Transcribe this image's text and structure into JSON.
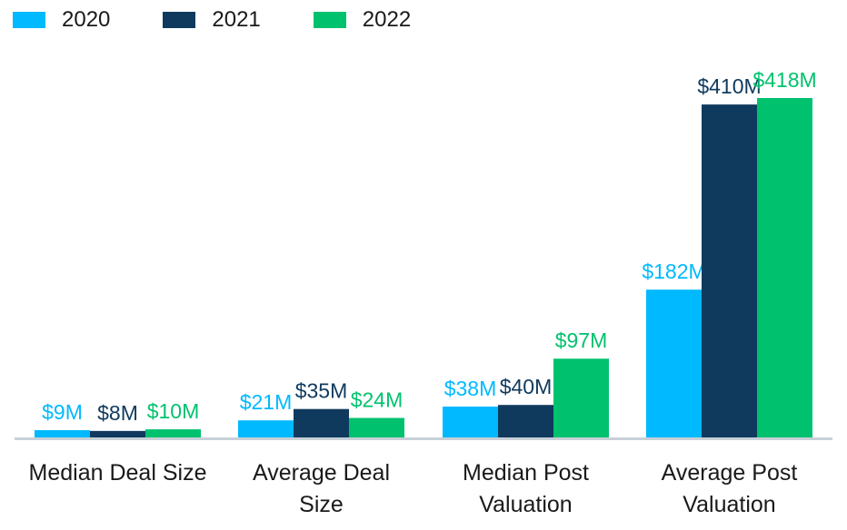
{
  "colors": {
    "2020": "#00b9ff",
    "2021": "#0f3a5e",
    "2022": "#00c26e",
    "axis": "#c8d0d8"
  },
  "chart_data": {
    "type": "bar",
    "categories": [
      [
        "Median Deal Size"
      ],
      [
        "Average Deal",
        "Size"
      ],
      [
        "Median Post",
        "Valuation"
      ],
      [
        "Average Post",
        "Valuation"
      ]
    ],
    "series": [
      {
        "name": "2020",
        "values": [
          9,
          21,
          38,
          182
        ],
        "labels": [
          "$9M",
          "$21M",
          "$38M",
          "$182M"
        ]
      },
      {
        "name": "2021",
        "values": [
          8,
          35,
          40,
          410
        ],
        "labels": [
          "$8M",
          "$35M",
          "$40M",
          "$410M"
        ]
      },
      {
        "name": "2022",
        "values": [
          10,
          24,
          97,
          418
        ],
        "labels": [
          "$10M",
          "$24M",
          "$97M",
          "$418M"
        ]
      }
    ],
    "ylim": [
      0,
      418
    ],
    "legend_position": "top-left",
    "grid": false
  }
}
